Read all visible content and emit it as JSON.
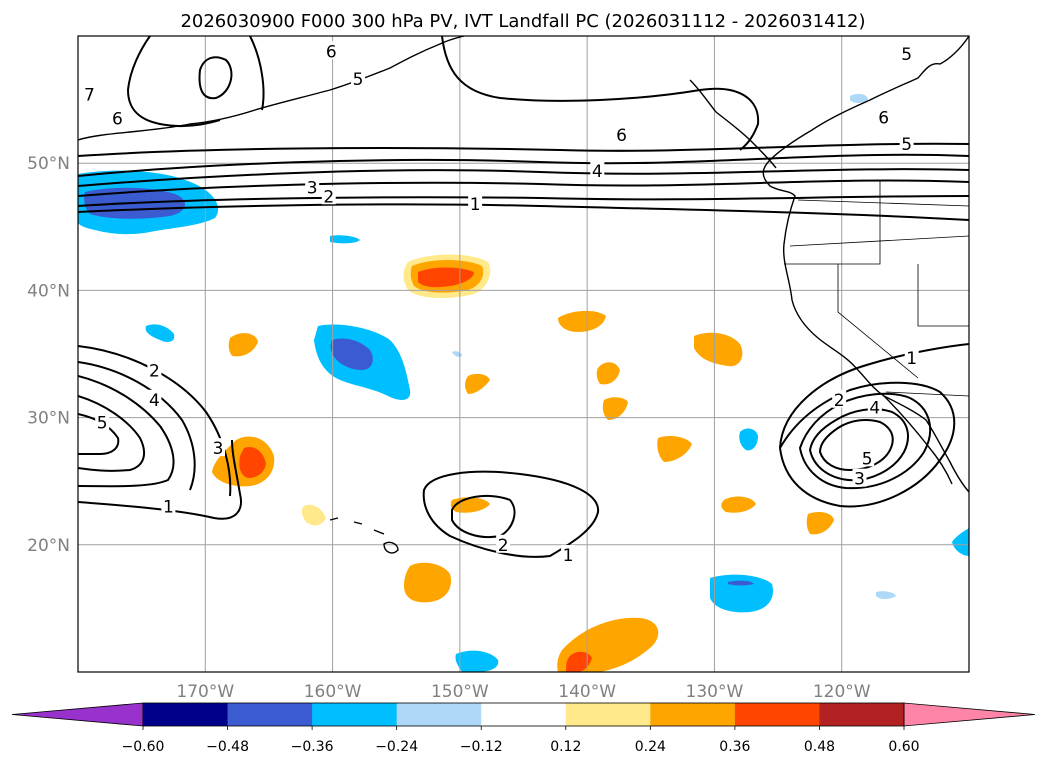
{
  "title": "2026030900 F000 300 hPa PV, IVT Landfall PC (2026031112 - 2026031412)",
  "colors": {
    "background": "#ffffff",
    "gridline": "#a0a0a0",
    "axis_label": "#808080",
    "contour": "#000000"
  },
  "map": {
    "projection": "PlateCarree",
    "lon_range": [
      -180,
      -110
    ],
    "lat_range": [
      10,
      60
    ],
    "lat_gridlines": [
      {
        "value": 50,
        "label": "50°N"
      },
      {
        "value": 40,
        "label": "40°N"
      },
      {
        "value": 30,
        "label": "30°N"
      },
      {
        "value": 20,
        "label": "20°N"
      }
    ],
    "lon_gridlines": [
      {
        "value": -170,
        "label": "170°W"
      },
      {
        "value": -160,
        "label": "160°W"
      },
      {
        "value": -150,
        "label": "150°W"
      },
      {
        "value": -140,
        "label": "140°W"
      },
      {
        "value": -130,
        "label": "130°W"
      },
      {
        "value": -120,
        "label": "120°W"
      }
    ]
  },
  "colorbar": {
    "ticks": [
      "−0.60",
      "−0.48",
      "−0.36",
      "−0.24",
      "−0.12",
      "0.12",
      "0.24",
      "0.36",
      "0.48",
      "0.60"
    ],
    "colors": [
      "#9932cc",
      "#00008b",
      "#3b5bd1",
      "#00bfff",
      "#add8f7",
      "#ffffff",
      "#ffe98a",
      "#ffa500",
      "#ff4500",
      "#b22222",
      "#ff85a8"
    ],
    "extend": "both"
  },
  "contours": {
    "variable": "300 hPa PV",
    "labels": [
      {
        "text": "6",
        "lon": -160.1,
        "lat": 58.8
      },
      {
        "text": "5",
        "lon": -158.0,
        "lat": 56.6
      },
      {
        "text": "7",
        "lon": -179.1,
        "lat": 55.4
      },
      {
        "text": "6",
        "lon": -176.9,
        "lat": 53.5
      },
      {
        "text": "6",
        "lon": -137.3,
        "lat": 52.2
      },
      {
        "text": "4",
        "lon": -139.2,
        "lat": 49.4
      },
      {
        "text": "3",
        "lon": -161.6,
        "lat": 48.1
      },
      {
        "text": "2",
        "lon": -160.3,
        "lat": 47.4
      },
      {
        "text": "1",
        "lon": -148.8,
        "lat": 46.8
      },
      {
        "text": "5",
        "lon": -114.9,
        "lat": 58.6
      },
      {
        "text": "6",
        "lon": -116.7,
        "lat": 53.6
      },
      {
        "text": "5",
        "lon": -114.9,
        "lat": 51.5
      },
      {
        "text": "2",
        "lon": -174.0,
        "lat": 33.7
      },
      {
        "text": "4",
        "lon": -174.0,
        "lat": 31.4
      },
      {
        "text": "5",
        "lon": -178.1,
        "lat": 29.6
      },
      {
        "text": "3",
        "lon": -169.0,
        "lat": 27.6
      },
      {
        "text": "1",
        "lon": -172.9,
        "lat": 23.0
      },
      {
        "text": "2",
        "lon": -146.6,
        "lat": 20.0
      },
      {
        "text": "1",
        "lon": -141.5,
        "lat": 19.2
      },
      {
        "text": "1",
        "lon": -114.5,
        "lat": 34.7
      },
      {
        "text": "2",
        "lon": -120.2,
        "lat": 31.4
      },
      {
        "text": "4",
        "lon": -117.4,
        "lat": 30.8
      },
      {
        "text": "5",
        "lon": -118.0,
        "lat": 26.8
      },
      {
        "text": "3",
        "lon": -118.6,
        "lat": 25.2
      }
    ]
  }
}
